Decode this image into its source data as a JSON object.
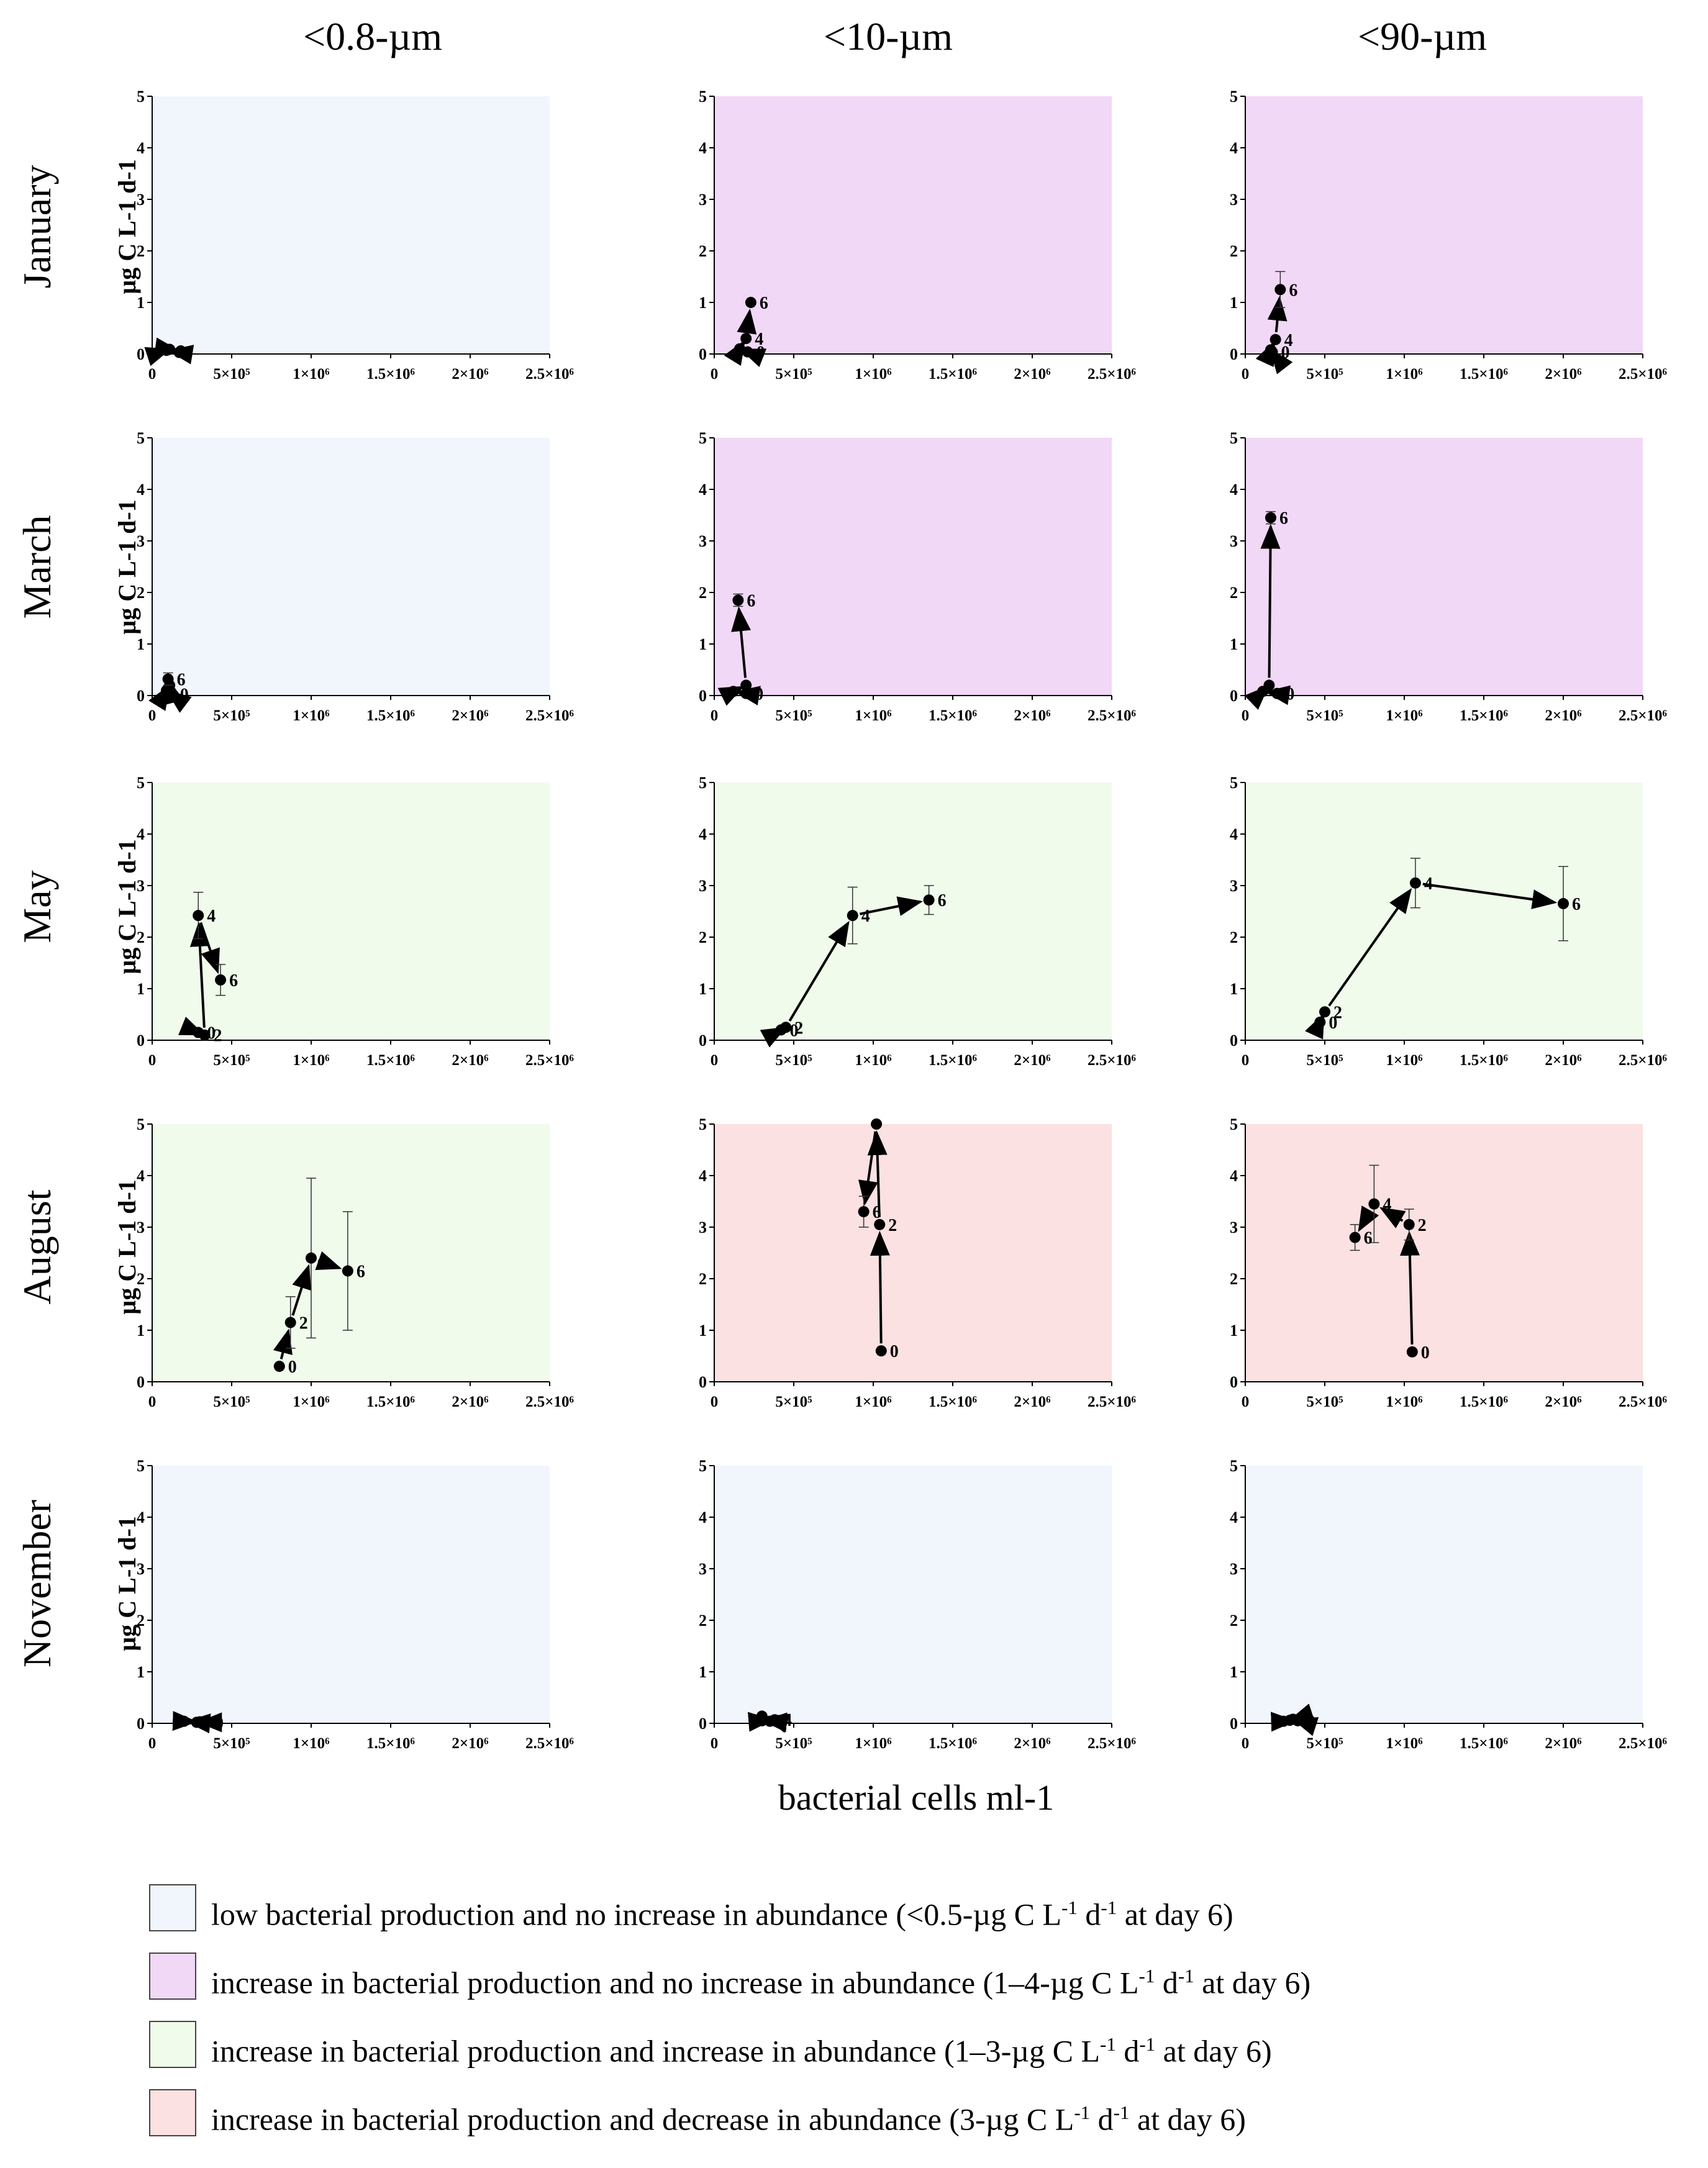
{
  "columns": [
    "<0.8-µm",
    "<10-µm",
    "<90-µm"
  ],
  "rows": [
    "January",
    "March",
    "May",
    "August",
    "November"
  ],
  "y_axis_label": "µg C L-1 d-1",
  "x_axis_label": "bacterial cells ml-1",
  "legend": [
    {
      "category": "low",
      "color": "#f1f6fd",
      "pre": "low bacterial production and no increase in abundance (<0.5-µg C L",
      "mid": " d",
      "post": " at day 6)"
    },
    {
      "category": "purple",
      "color": "#f1d8f6",
      "pre": "increase in bacterial production and no increase in abundance (1–4-µg C L",
      "mid": " d",
      "post": " at day 6)"
    },
    {
      "category": "green",
      "color": "#f0fbec",
      "pre": "increase in bacterial production and increase in abundance (1–3-µg C L",
      "mid": " d",
      "post": " at day 6)"
    },
    {
      "category": "red",
      "color": "#fbe1e1",
      "pre": "increase in bacterial production and decrease in abundance (3-µg C L",
      "mid": " d",
      "post": " at day 6)"
    }
  ],
  "chart_data": {
    "type": "scatter",
    "xlabel": "bacterial cells ml-1",
    "ylabel": "µg C L-1 d-1",
    "xlim": [
      0,
      2500000
    ],
    "ylim": [
      0,
      5
    ],
    "x_ticks": [
      0,
      500000,
      1000000,
      1500000,
      2000000,
      2500000
    ],
    "x_tick_labels": [
      "0",
      "5×10⁵",
      "1×10⁶",
      "1.5×10⁶",
      "2×10⁶",
      "2.5×10⁶"
    ],
    "y_ticks": [
      0,
      1,
      2,
      3,
      4,
      5
    ],
    "y_tick_labels": [
      "0",
      "1",
      "2",
      "3",
      "4",
      "5"
    ],
    "panels": [
      {
        "row": "January",
        "col": "<0.8-µm",
        "bg": "low",
        "points": [
          {
            "day": "0",
            "x": 170000,
            "y": 0.03,
            "err": 0,
            "show_label": false
          },
          {
            "day": "2",
            "x": 90000,
            "y": 0.07,
            "err": 0,
            "show_label": false
          },
          {
            "day": "4",
            "x": 110000,
            "y": 0.09,
            "err": 0,
            "show_label": false
          },
          {
            "day": "6",
            "x": 180000,
            "y": 0.06,
            "err": 0,
            "show_label": false
          }
        ]
      },
      {
        "row": "January",
        "col": "<10-µm",
        "bg": "purple",
        "points": [
          {
            "day": "0",
            "x": 210000,
            "y": 0.04,
            "err": 0,
            "show_label": true
          },
          {
            "day": "2",
            "x": 160000,
            "y": 0.1,
            "err": 0,
            "show_label": false
          },
          {
            "day": "4",
            "x": 200000,
            "y": 0.3,
            "err": 0,
            "show_label": true
          },
          {
            "day": "6",
            "x": 230000,
            "y": 1.0,
            "err": 0,
            "show_label": true
          }
        ]
      },
      {
        "row": "January",
        "col": "<90-µm",
        "bg": "purple",
        "points": [
          {
            "day": "0",
            "x": 170000,
            "y": 0.04,
            "err": 0,
            "show_label": true
          },
          {
            "day": "2",
            "x": 160000,
            "y": 0.08,
            "err": 0,
            "show_label": false
          },
          {
            "day": "4",
            "x": 190000,
            "y": 0.28,
            "err": 0,
            "show_label": true
          },
          {
            "day": "6",
            "x": 220000,
            "y": 1.25,
            "err": 0.35,
            "show_label": true
          }
        ]
      },
      {
        "row": "March",
        "col": "<0.8-µm",
        "bg": "low",
        "points": [
          {
            "day": "0",
            "x": 120000,
            "y": 0.03,
            "err": 0,
            "show_label": true
          },
          {
            "day": "2",
            "x": 90000,
            "y": 0.1,
            "err": 0,
            "show_label": false
          },
          {
            "day": "4",
            "x": 110000,
            "y": 0.2,
            "err": 0,
            "show_label": false
          },
          {
            "day": "6",
            "x": 100000,
            "y": 0.32,
            "err": 0.12,
            "show_label": true
          }
        ]
      },
      {
        "row": "March",
        "col": "<10-µm",
        "bg": "purple",
        "points": [
          {
            "day": "0",
            "x": 200000,
            "y": 0.04,
            "err": 0,
            "show_label": true
          },
          {
            "day": "2",
            "x": 120000,
            "y": 0.08,
            "err": 0,
            "show_label": false
          },
          {
            "day": "4",
            "x": 200000,
            "y": 0.2,
            "err": 0,
            "show_label": false
          },
          {
            "day": "6",
            "x": 150000,
            "y": 1.85,
            "err": 0.12,
            "show_label": true
          }
        ]
      },
      {
        "row": "March",
        "col": "<90-µm",
        "bg": "purple",
        "points": [
          {
            "day": "0",
            "x": 200000,
            "y": 0.04,
            "err": 0,
            "show_label": true
          },
          {
            "day": "2",
            "x": 110000,
            "y": 0.08,
            "err": 0,
            "show_label": false
          },
          {
            "day": "4",
            "x": 150000,
            "y": 0.2,
            "err": 0,
            "show_label": false
          },
          {
            "day": "6",
            "x": 160000,
            "y": 3.45,
            "err": 0.12,
            "show_label": true
          }
        ]
      },
      {
        "row": "May",
        "col": "<0.8-µm",
        "bg": "green",
        "points": [
          {
            "day": "0",
            "x": 290000,
            "y": 0.15,
            "err": 0,
            "show_label": true
          },
          {
            "day": "2",
            "x": 330000,
            "y": 0.1,
            "err": 0,
            "show_label": true
          },
          {
            "day": "4",
            "x": 290000,
            "y": 2.42,
            "err": 0.45,
            "show_label": true
          },
          {
            "day": "6",
            "x": 430000,
            "y": 1.17,
            "err": 0.3,
            "show_label": true
          }
        ]
      },
      {
        "row": "May",
        "col": "<10-µm",
        "bg": "green",
        "points": [
          {
            "day": "0",
            "x": 420000,
            "y": 0.2,
            "err": 0,
            "show_label": true
          },
          {
            "day": "2",
            "x": 450000,
            "y": 0.25,
            "err": 0,
            "show_label": true
          },
          {
            "day": "4",
            "x": 870000,
            "y": 2.42,
            "err": 0.55,
            "show_label": true
          },
          {
            "day": "6",
            "x": 1350000,
            "y": 2.72,
            "err": 0.28,
            "show_label": true
          }
        ]
      },
      {
        "row": "May",
        "col": "<90-µm",
        "bg": "green",
        "points": [
          {
            "day": "0",
            "x": 470000,
            "y": 0.35,
            "err": 0,
            "show_label": true
          },
          {
            "day": "2",
            "x": 500000,
            "y": 0.55,
            "err": 0,
            "show_label": true
          },
          {
            "day": "4",
            "x": 1070000,
            "y": 3.05,
            "err": 0.48,
            "show_label": true
          },
          {
            "day": "6",
            "x": 2000000,
            "y": 2.65,
            "err": 0.72,
            "show_label": true
          }
        ]
      },
      {
        "row": "August",
        "col": "<0.8-µm",
        "bg": "green",
        "points": [
          {
            "day": "0",
            "x": 800000,
            "y": 0.3,
            "err": 0,
            "show_label": true
          },
          {
            "day": "2",
            "x": 870000,
            "y": 1.15,
            "err": 0.5,
            "show_label": true
          },
          {
            "day": "4",
            "x": 1000000,
            "y": 2.4,
            "err": 1.55,
            "show_label": false
          },
          {
            "day": "6",
            "x": 1230000,
            "y": 2.15,
            "err": 1.15,
            "show_label": true
          }
        ]
      },
      {
        "row": "August",
        "col": "<10-µm",
        "bg": "red",
        "points": [
          {
            "day": "0",
            "x": 1050000,
            "y": 0.6,
            "err": 0,
            "show_label": true
          },
          {
            "day": "2",
            "x": 1040000,
            "y": 3.05,
            "err": 0,
            "show_label": true
          },
          {
            "day": "4",
            "x": 1020000,
            "y": 5.0,
            "err": 0,
            "show_label": false
          },
          {
            "day": "6",
            "x": 940000,
            "y": 3.3,
            "err": 0.3,
            "show_label": true
          }
        ]
      },
      {
        "row": "August",
        "col": "<90-µm",
        "bg": "red",
        "points": [
          {
            "day": "0",
            "x": 1050000,
            "y": 0.58,
            "err": 0,
            "show_label": true
          },
          {
            "day": "2",
            "x": 1030000,
            "y": 3.05,
            "err": 0.3,
            "show_label": true
          },
          {
            "day": "4",
            "x": 810000,
            "y": 3.45,
            "err": 0.75,
            "show_label": true
          },
          {
            "day": "6",
            "x": 690000,
            "y": 2.8,
            "err": 0.25,
            "show_label": true
          }
        ]
      },
      {
        "row": "November",
        "col": "<0.8-µm",
        "bg": "low",
        "points": [
          {
            "day": "0",
            "x": 340000,
            "y": 0.02,
            "err": 0,
            "show_label": true
          },
          {
            "day": "2",
            "x": 280000,
            "y": 0.02,
            "err": 0,
            "show_label": false
          },
          {
            "day": "4",
            "x": 200000,
            "y": 0.04,
            "err": 0,
            "show_label": false
          },
          {
            "day": "6",
            "x": 300000,
            "y": 0.03,
            "err": 0,
            "show_label": false
          }
        ]
      },
      {
        "row": "November",
        "col": "<10-µm",
        "bg": "low",
        "points": [
          {
            "day": "0",
            "x": 350000,
            "y": 0.04,
            "err": 0,
            "show_label": false
          },
          {
            "day": "2",
            "x": 300000,
            "y": 0.05,
            "err": 0,
            "show_label": false
          },
          {
            "day": "4",
            "x": 380000,
            "y": 0.07,
            "err": 0,
            "show_label": true
          },
          {
            "day": "6",
            "x": 300000,
            "y": 0.14,
            "err": 0,
            "show_label": false
          }
        ]
      },
      {
        "row": "November",
        "col": "<90-µm",
        "bg": "low",
        "points": [
          {
            "day": "0",
            "x": 240000,
            "y": 0.04,
            "err": 0,
            "show_label": false
          },
          {
            "day": "2",
            "x": 330000,
            "y": 0.05,
            "err": 0,
            "show_label": true
          },
          {
            "day": "4",
            "x": 300000,
            "y": 0.08,
            "err": 0,
            "show_label": true
          },
          {
            "day": "6",
            "x": 280000,
            "y": 0.06,
            "err": 0,
            "show_label": false
          }
        ]
      }
    ]
  }
}
